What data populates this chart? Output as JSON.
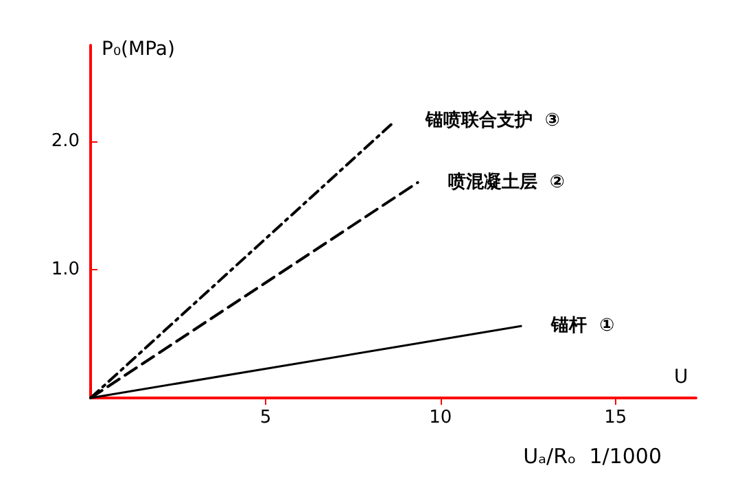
{
  "chart_data": {
    "type": "line",
    "ylabel": "P₀(MPa)",
    "xlabel": "U",
    "annotations": [
      "Uₐ/Rₒ  1/1000"
    ],
    "xlim": [
      0,
      17.3
    ],
    "ylim": [
      0,
      2.75
    ],
    "xticks": [
      5,
      10,
      15
    ],
    "yticks": [
      {
        "value": 1,
        "label": "1.0"
      },
      {
        "value": 2,
        "label": "2.0"
      }
    ],
    "grid": false,
    "legend": false,
    "marker": "none",
    "series": [
      {
        "name": "锚喷联合支护  ③",
        "color": "#000000",
        "x": [
          0,
          8.7
        ],
        "values": [
          0,
          2.16
        ],
        "line_style": "dotted"
      },
      {
        "name": "喷混凝土层  ②",
        "color": "#000000",
        "x": [
          0,
          9.35
        ],
        "values": [
          0,
          1.68
        ],
        "line_style": "dashed"
      },
      {
        "name": "锚杆  ①",
        "color": "#000000",
        "x": [
          0,
          12.3
        ],
        "values": [
          0,
          0.56
        ],
        "line_style": "solid"
      }
    ]
  }
}
